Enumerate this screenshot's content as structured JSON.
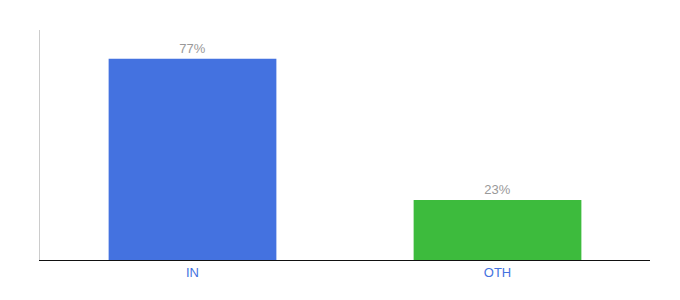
{
  "chart_data": {
    "type": "bar",
    "categories": [
      "IN",
      "OTH"
    ],
    "values": [
      77,
      23
    ],
    "value_labels": [
      "77%",
      "23%"
    ],
    "colors": [
      "#4472e0",
      "#3dbb3d"
    ],
    "ylim": [
      0,
      88
    ],
    "yticks": [],
    "data_labels": true,
    "tick_labels": "x",
    "grid": false
  }
}
